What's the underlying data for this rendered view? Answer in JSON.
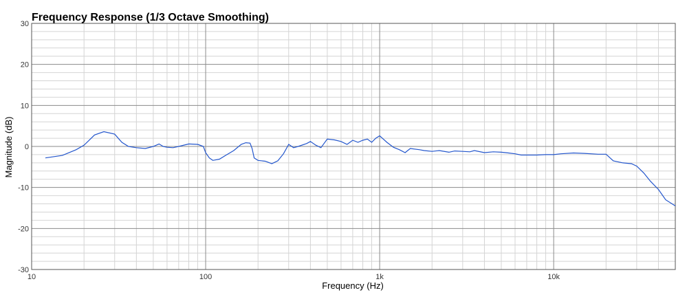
{
  "chart_data": {
    "type": "line",
    "title": "Frequency Response (1/3 Octave Smoothing)",
    "xlabel": "Frequency (Hz)",
    "ylabel": "Magnitude (dB)",
    "xscale": "log",
    "xlim": [
      10,
      50000
    ],
    "ylim": [
      -30,
      30
    ],
    "x_tick_labels": [
      {
        "value": 10,
        "label": "10"
      },
      {
        "value": 100,
        "label": "100"
      },
      {
        "value": 1000,
        "label": "1k"
      },
      {
        "value": 10000,
        "label": "10k"
      }
    ],
    "y_tick_labels": [
      {
        "value": 30,
        "label": "30"
      },
      {
        "value": 20,
        "label": "20"
      },
      {
        "value": 10,
        "label": "10"
      },
      {
        "value": 0,
        "label": "0"
      },
      {
        "value": -10,
        "label": "-10"
      },
      {
        "value": -20,
        "label": "-20"
      },
      {
        "value": -30,
        "label": "-30"
      }
    ],
    "grid": true,
    "series_color": "#2255cc",
    "series": [
      {
        "x": [
          12,
          15,
          18,
          20,
          23,
          26,
          30,
          33,
          36,
          40,
          45,
          50,
          54,
          57,
          60,
          65,
          70,
          80,
          90,
          97,
          100,
          105,
          110,
          120,
          130,
          145,
          160,
          170,
          180,
          185,
          190,
          200,
          220,
          240,
          260,
          280,
          300,
          320,
          340,
          380,
          400,
          430,
          460,
          500,
          550,
          600,
          650,
          700,
          750,
          800,
          850,
          900,
          950,
          1000,
          1050,
          1100,
          1200,
          1300,
          1400,
          1500,
          1700,
          1800,
          2000,
          2200,
          2500,
          2700,
          3000,
          3300,
          3500,
          4000,
          4500,
          5000,
          5500,
          6000,
          6500,
          7000,
          8000,
          9000,
          10000,
          11000,
          13000,
          15000,
          18000,
          20000,
          22000,
          25000,
          28000,
          30000,
          33000,
          36000,
          40000,
          44000,
          50000
        ],
        "y": [
          -2.8,
          -2.2,
          -0.8,
          0.3,
          2.8,
          3.6,
          3.0,
          1.0,
          0.0,
          -0.3,
          -0.5,
          0.0,
          0.6,
          0.0,
          -0.2,
          -0.3,
          0.0,
          0.6,
          0.5,
          0.0,
          -1.5,
          -2.8,
          -3.4,
          -3.1,
          -2.2,
          -1.0,
          0.5,
          0.9,
          0.8,
          -0.5,
          -2.8,
          -3.4,
          -3.6,
          -4.2,
          -3.5,
          -1.8,
          0.5,
          -0.3,
          0.0,
          0.7,
          1.2,
          0.3,
          -0.3,
          1.8,
          1.6,
          1.2,
          0.5,
          1.5,
          1.0,
          1.5,
          1.8,
          1.0,
          2.0,
          2.6,
          1.8,
          1.0,
          -0.2,
          -0.8,
          -1.5,
          -0.5,
          -0.8,
          -1.0,
          -1.2,
          -1.0,
          -1.4,
          -1.1,
          -1.2,
          -1.3,
          -1.0,
          -1.5,
          -1.3,
          -1.4,
          -1.6,
          -1.8,
          -2.1,
          -2.1,
          -2.1,
          -2.0,
          -2.0,
          -1.8,
          -1.6,
          -1.7,
          -1.9,
          -1.9,
          -3.5,
          -4.0,
          -4.2,
          -4.8,
          -6.5,
          -8.5,
          -10.5,
          -13.0,
          -14.5
        ]
      }
    ]
  }
}
